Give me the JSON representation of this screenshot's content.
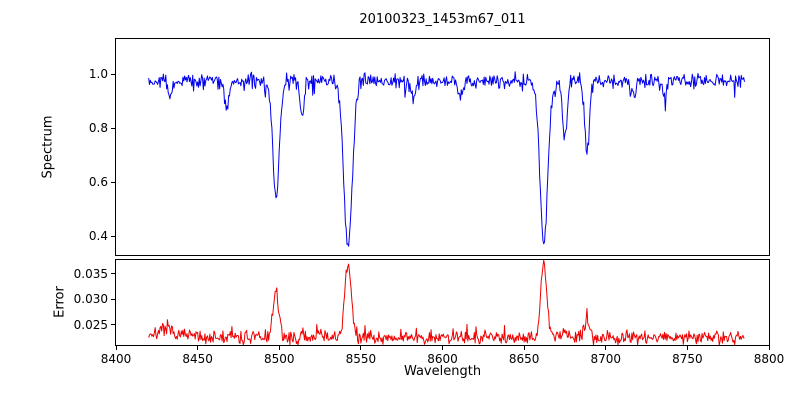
{
  "title": "20100323_1453m67_011",
  "xlabel": "Wavelength",
  "xlim": [
    8400,
    8800
  ],
  "xticks": [
    8400,
    8450,
    8500,
    8550,
    8600,
    8650,
    8700,
    8750,
    8800
  ],
  "colors": {
    "spectrum_line": "#0000ee",
    "error_line": "#ee0000",
    "axis": "#000000",
    "background": "#ffffff"
  },
  "chart_data": [
    {
      "type": "line",
      "name": "spectrum",
      "ylabel": "Spectrum",
      "color_key": "spectrum_line",
      "x_start": 8420,
      "x_end": 8785,
      "x_step": 0.5,
      "ylim": [
        0.33,
        1.13
      ],
      "yticks": [
        1.0,
        0.8,
        0.6,
        0.4
      ],
      "ytick_labels": [
        "1.0",
        "0.8",
        "0.6",
        "0.4"
      ],
      "baseline": 0.975,
      "noise_sigma": 0.013,
      "dip_probability": 0.07,
      "dip_depth": 0.045,
      "seed": 42,
      "absorption_lines": [
        {
          "center": 8433.0,
          "depth": 0.06,
          "width": 1.2
        },
        {
          "center": 8468.0,
          "depth": 0.09,
          "width": 1.4
        },
        {
          "center": 8498.0,
          "depth": 0.44,
          "width": 2.0
        },
        {
          "center": 8514.0,
          "depth": 0.12,
          "width": 1.3
        },
        {
          "center": 8542.1,
          "depth": 0.615,
          "width": 2.6
        },
        {
          "center": 8582.0,
          "depth": 0.07,
          "width": 1.2
        },
        {
          "center": 8611.0,
          "depth": 0.06,
          "width": 1.2
        },
        {
          "center": 8662.1,
          "depth": 0.605,
          "width": 2.4
        },
        {
          "center": 8675.0,
          "depth": 0.21,
          "width": 1.4
        },
        {
          "center": 8688.6,
          "depth": 0.25,
          "width": 1.5
        },
        {
          "center": 8717.0,
          "depth": 0.06,
          "width": 1.2
        },
        {
          "center": 8736.0,
          "depth": 0.06,
          "width": 1.2
        }
      ]
    },
    {
      "type": "line",
      "name": "error",
      "ylabel": "Error",
      "color_key": "error_line",
      "x_start": 8420,
      "x_end": 8785,
      "x_step": 0.5,
      "ylim": [
        0.021,
        0.0377
      ],
      "yticks": [
        0.035,
        0.03,
        0.025
      ],
      "ytick_labels": [
        "0.035",
        "0.030",
        "0.025"
      ],
      "baseline": 0.0225,
      "noise_sigma": 0.00065,
      "spike_probability": 0.06,
      "spike_height": 0.0018,
      "seed": 7,
      "emission_peaks": [
        {
          "center": 8430.0,
          "height": 0.0012,
          "width": 8.0
        },
        {
          "center": 8498.0,
          "height": 0.0085,
          "width": 1.8
        },
        {
          "center": 8542.1,
          "height": 0.014,
          "width": 2.0
        },
        {
          "center": 8662.1,
          "height": 0.0145,
          "width": 1.8
        },
        {
          "center": 8675.0,
          "height": 0.0018,
          "width": 1.4
        },
        {
          "center": 8688.6,
          "height": 0.0038,
          "width": 1.4
        }
      ]
    }
  ]
}
